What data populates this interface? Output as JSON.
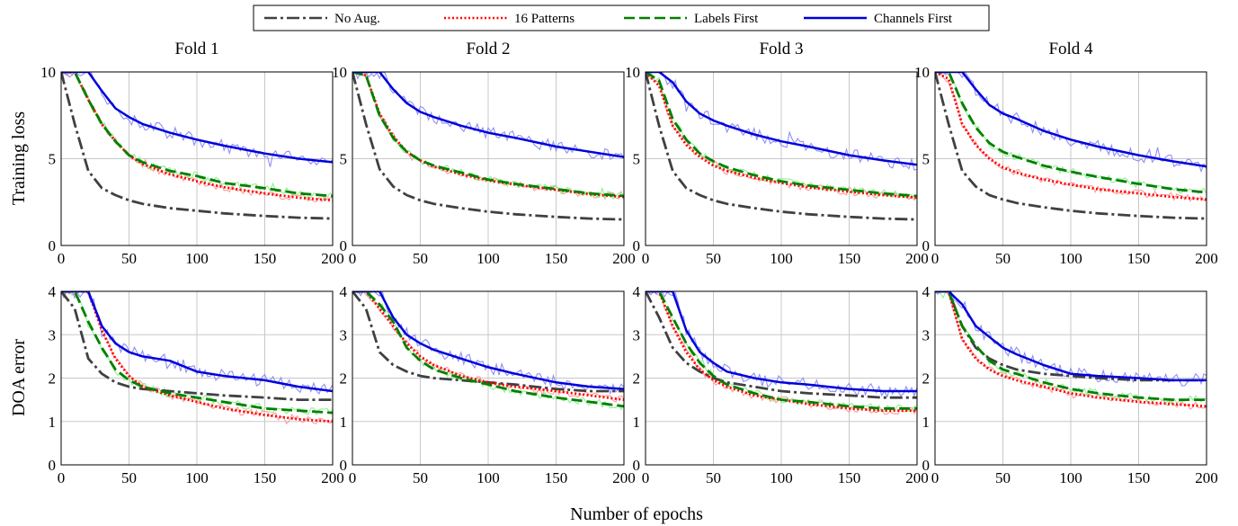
{
  "legend": [
    {
      "name": "No Aug.",
      "color": "#404040",
      "style": "dashdot"
    },
    {
      "name": "16 Patterns",
      "color": "#ff0000",
      "style": "dotted"
    },
    {
      "name": "Labels First",
      "color": "#008000",
      "style": "dashed"
    },
    {
      "name": "Channels First",
      "color": "#0000dd",
      "style": "solid"
    }
  ],
  "noisy_colors": {
    "No Aug.": "#c0c0c0",
    "16 Patterns": "#ff9a9a",
    "Labels First": "#8ef08e",
    "Channels First": "#8f8ff5"
  },
  "shared_xlabel": "Number of epochs",
  "chart_data": [
    {
      "type": "line",
      "title": "Fold 1",
      "ylabel": "Training loss",
      "xlabel": "",
      "xlim": [
        0,
        200
      ],
      "ylim": [
        0,
        10
      ],
      "xticks": [
        0,
        50,
        100,
        150,
        200
      ],
      "yticks": [
        0,
        5,
        10
      ],
      "grid": true,
      "x": [
        0,
        10,
        20,
        30,
        40,
        50,
        60,
        80,
        100,
        120,
        150,
        175,
        200
      ],
      "series": [
        {
          "name": "No Aug.",
          "values": [
            10.0,
            7.0,
            4.3,
            3.3,
            2.9,
            2.6,
            2.4,
            2.15,
            2.0,
            1.85,
            1.7,
            1.6,
            1.55
          ]
        },
        {
          "name": "16 Patterns",
          "values": [
            10.0,
            10.0,
            8.4,
            7.0,
            6.0,
            5.2,
            4.7,
            4.1,
            3.7,
            3.35,
            3.0,
            2.75,
            2.6
          ]
        },
        {
          "name": "Labels First",
          "values": [
            10.0,
            10.0,
            8.4,
            7.0,
            6.0,
            5.2,
            4.8,
            4.3,
            4.0,
            3.6,
            3.3,
            3.0,
            2.85
          ]
        },
        {
          "name": "Channels First",
          "values": [
            10.0,
            10.0,
            10.0,
            8.9,
            7.9,
            7.4,
            7.0,
            6.5,
            6.1,
            5.75,
            5.3,
            5.0,
            4.8
          ]
        }
      ]
    },
    {
      "type": "line",
      "title": "Fold 2",
      "ylabel": "",
      "xlabel": "",
      "xlim": [
        0,
        200
      ],
      "ylim": [
        0,
        10
      ],
      "xticks": [
        0,
        50,
        100,
        150,
        200
      ],
      "yticks": [
        0,
        5,
        10
      ],
      "grid": true,
      "x": [
        0,
        10,
        20,
        30,
        40,
        50,
        60,
        80,
        100,
        120,
        150,
        175,
        200
      ],
      "series": [
        {
          "name": "No Aug.",
          "values": [
            10.0,
            7.0,
            4.4,
            3.4,
            2.9,
            2.6,
            2.4,
            2.15,
            1.95,
            1.8,
            1.65,
            1.55,
            1.5
          ]
        },
        {
          "name": "16 Patterns",
          "values": [
            10.0,
            9.8,
            7.6,
            6.3,
            5.4,
            4.9,
            4.55,
            4.1,
            3.75,
            3.5,
            3.2,
            2.95,
            2.8
          ]
        },
        {
          "name": "Labels First",
          "values": [
            10.0,
            9.8,
            7.5,
            6.2,
            5.4,
            4.9,
            4.6,
            4.2,
            3.8,
            3.55,
            3.25,
            3.0,
            2.85
          ]
        },
        {
          "name": "Channels First",
          "values": [
            10.0,
            10.0,
            10.0,
            9.0,
            8.2,
            7.7,
            7.4,
            6.9,
            6.5,
            6.2,
            5.7,
            5.4,
            5.1
          ]
        }
      ]
    },
    {
      "type": "line",
      "title": "Fold 3",
      "ylabel": "",
      "xlabel": "",
      "xlim": [
        0,
        200
      ],
      "ylim": [
        0,
        10
      ],
      "xticks": [
        0,
        50,
        100,
        150,
        200
      ],
      "yticks": [
        0,
        5,
        10
      ],
      "grid": true,
      "x": [
        0,
        10,
        20,
        30,
        40,
        50,
        60,
        80,
        100,
        120,
        150,
        175,
        200
      ],
      "series": [
        {
          "name": "No Aug.",
          "values": [
            10.0,
            6.9,
            4.3,
            3.3,
            2.9,
            2.6,
            2.4,
            2.15,
            1.95,
            1.8,
            1.65,
            1.55,
            1.5
          ]
        },
        {
          "name": "16 Patterns",
          "values": [
            10.0,
            9.2,
            6.9,
            5.8,
            5.1,
            4.6,
            4.3,
            3.9,
            3.6,
            3.35,
            3.1,
            2.9,
            2.75
          ]
        },
        {
          "name": "Labels First",
          "values": [
            10.0,
            9.5,
            7.3,
            6.1,
            5.3,
            4.85,
            4.5,
            4.05,
            3.7,
            3.45,
            3.2,
            3.0,
            2.85
          ]
        },
        {
          "name": "Channels First",
          "values": [
            10.0,
            10.0,
            9.4,
            8.3,
            7.6,
            7.2,
            6.9,
            6.4,
            6.0,
            5.7,
            5.2,
            4.9,
            4.65
          ]
        }
      ]
    },
    {
      "type": "line",
      "title": "Fold 4",
      "ylabel": "",
      "xlabel": "",
      "xlim": [
        0,
        200
      ],
      "ylim": [
        0,
        10
      ],
      "xticks": [
        0,
        50,
        100,
        150,
        200
      ],
      "yticks": [
        0,
        5,
        10
      ],
      "grid": true,
      "x": [
        0,
        10,
        20,
        30,
        40,
        50,
        60,
        80,
        100,
        120,
        150,
        175,
        200
      ],
      "series": [
        {
          "name": "No Aug.",
          "values": [
            10.0,
            7.0,
            4.3,
            3.4,
            2.9,
            2.65,
            2.45,
            2.2,
            2.0,
            1.85,
            1.7,
            1.6,
            1.55
          ]
        },
        {
          "name": "16 Patterns",
          "values": [
            10.0,
            9.6,
            7.0,
            5.8,
            5.0,
            4.5,
            4.2,
            3.8,
            3.5,
            3.25,
            3.0,
            2.8,
            2.65
          ]
        },
        {
          "name": "Labels First",
          "values": [
            10.0,
            10.0,
            8.2,
            6.8,
            5.9,
            5.4,
            5.1,
            4.6,
            4.25,
            3.95,
            3.55,
            3.25,
            3.05
          ]
        },
        {
          "name": "Channels First",
          "values": [
            10.0,
            10.0,
            10.0,
            9.0,
            8.1,
            7.6,
            7.3,
            6.6,
            6.1,
            5.7,
            5.2,
            4.85,
            4.55
          ]
        }
      ]
    },
    {
      "type": "line",
      "title": "",
      "ylabel": "DOA error",
      "xlabel": "",
      "xlim": [
        0,
        200
      ],
      "ylim": [
        0,
        4
      ],
      "xticks": [
        0,
        50,
        100,
        150,
        200
      ],
      "yticks": [
        0,
        1,
        2,
        3,
        4
      ],
      "grid": true,
      "x": [
        0,
        10,
        20,
        30,
        40,
        50,
        60,
        80,
        100,
        120,
        150,
        175,
        200
      ],
      "series": [
        {
          "name": "No Aug.",
          "values": [
            4.0,
            3.6,
            2.45,
            2.1,
            1.9,
            1.8,
            1.75,
            1.7,
            1.65,
            1.6,
            1.55,
            1.5,
            1.5
          ]
        },
        {
          "name": "16 Patterns",
          "values": [
            4.0,
            4.0,
            4.0,
            3.1,
            2.45,
            2.05,
            1.8,
            1.6,
            1.45,
            1.3,
            1.15,
            1.05,
            1.0
          ]
        },
        {
          "name": "Labels First",
          "values": [
            4.0,
            4.0,
            3.3,
            2.7,
            2.2,
            1.95,
            1.8,
            1.65,
            1.55,
            1.45,
            1.3,
            1.25,
            1.2
          ]
        },
        {
          "name": "Channels First",
          "values": [
            4.0,
            4.0,
            4.0,
            3.2,
            2.8,
            2.6,
            2.5,
            2.4,
            2.15,
            2.05,
            1.95,
            1.8,
            1.7
          ]
        }
      ]
    },
    {
      "type": "line",
      "title": "",
      "ylabel": "",
      "xlabel": "",
      "xlim": [
        0,
        200
      ],
      "ylim": [
        0,
        4
      ],
      "xticks": [
        0,
        50,
        100,
        150,
        200
      ],
      "yticks": [
        0,
        1,
        2,
        3,
        4
      ],
      "grid": true,
      "x": [
        0,
        10,
        20,
        30,
        40,
        50,
        60,
        80,
        100,
        120,
        150,
        175,
        200
      ],
      "series": [
        {
          "name": "No Aug.",
          "values": [
            4.0,
            3.6,
            2.6,
            2.3,
            2.15,
            2.05,
            2.0,
            1.95,
            1.9,
            1.85,
            1.75,
            1.7,
            1.7
          ]
        },
        {
          "name": "16 Patterns",
          "values": [
            4.0,
            4.0,
            3.6,
            3.2,
            2.8,
            2.5,
            2.3,
            2.05,
            1.9,
            1.8,
            1.7,
            1.6,
            1.5
          ]
        },
        {
          "name": "Labels First",
          "values": [
            4.0,
            4.0,
            3.7,
            3.3,
            2.7,
            2.4,
            2.2,
            2.0,
            1.85,
            1.7,
            1.55,
            1.45,
            1.35
          ]
        },
        {
          "name": "Channels First",
          "values": [
            4.0,
            4.0,
            4.0,
            3.4,
            3.0,
            2.8,
            2.65,
            2.45,
            2.25,
            2.1,
            1.9,
            1.8,
            1.75
          ]
        }
      ]
    },
    {
      "type": "line",
      "title": "",
      "ylabel": "",
      "xlabel": "",
      "xlim": [
        0,
        200
      ],
      "ylim": [
        0,
        4
      ],
      "xticks": [
        0,
        50,
        100,
        150,
        200
      ],
      "yticks": [
        0,
        1,
        2,
        3,
        4
      ],
      "grid": true,
      "x": [
        0,
        10,
        20,
        30,
        40,
        50,
        60,
        80,
        100,
        120,
        150,
        175,
        200
      ],
      "series": [
        {
          "name": "No Aug.",
          "values": [
            4.0,
            3.4,
            2.7,
            2.35,
            2.15,
            2.0,
            1.9,
            1.8,
            1.7,
            1.65,
            1.6,
            1.55,
            1.55
          ]
        },
        {
          "name": "16 Patterns",
          "values": [
            4.0,
            4.0,
            3.2,
            2.6,
            2.2,
            1.95,
            1.8,
            1.6,
            1.5,
            1.4,
            1.3,
            1.25,
            1.25
          ]
        },
        {
          "name": "Labels First",
          "values": [
            4.0,
            4.0,
            3.4,
            2.8,
            2.35,
            2.05,
            1.85,
            1.65,
            1.5,
            1.45,
            1.35,
            1.3,
            1.3
          ]
        },
        {
          "name": "Channels First",
          "values": [
            4.0,
            4.0,
            4.0,
            3.1,
            2.6,
            2.35,
            2.15,
            2.0,
            1.9,
            1.85,
            1.75,
            1.7,
            1.7
          ]
        }
      ]
    },
    {
      "type": "line",
      "title": "",
      "ylabel": "",
      "xlabel": "",
      "xlim": [
        0,
        200
      ],
      "ylim": [
        0,
        4
      ],
      "xticks": [
        0,
        50,
        100,
        150,
        200
      ],
      "yticks": [
        0,
        1,
        2,
        3,
        4
      ],
      "grid": true,
      "x": [
        0,
        10,
        20,
        30,
        40,
        50,
        60,
        80,
        100,
        120,
        150,
        175,
        200
      ],
      "series": [
        {
          "name": "No Aug.",
          "values": [
            4.0,
            4.0,
            3.2,
            2.7,
            2.45,
            2.3,
            2.2,
            2.1,
            2.05,
            2.0,
            1.95,
            1.95,
            1.95
          ]
        },
        {
          "name": "16 Patterns",
          "values": [
            4.0,
            4.0,
            2.9,
            2.45,
            2.2,
            2.05,
            1.95,
            1.8,
            1.65,
            1.55,
            1.45,
            1.4,
            1.35
          ]
        },
        {
          "name": "Labels First",
          "values": [
            4.0,
            4.0,
            3.2,
            2.75,
            2.4,
            2.2,
            2.1,
            1.9,
            1.75,
            1.65,
            1.55,
            1.5,
            1.5
          ]
        },
        {
          "name": "Channels First",
          "values": [
            4.0,
            4.0,
            3.7,
            3.2,
            2.95,
            2.7,
            2.55,
            2.3,
            2.1,
            2.05,
            2.0,
            1.95,
            1.95
          ]
        }
      ]
    }
  ]
}
